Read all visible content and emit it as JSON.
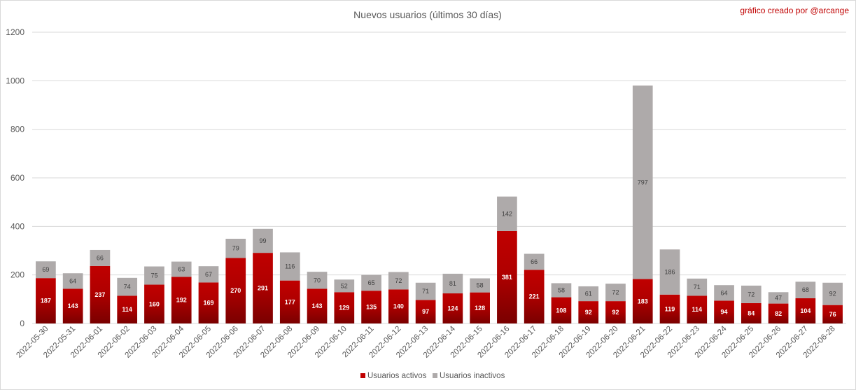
{
  "chart_data": {
    "type": "bar",
    "stacked": true,
    "title": "Nuevos usuarios (últimos 30 días)",
    "credit": "gráfico creado por @arcange",
    "xlabel": "",
    "ylabel": "",
    "ylim": [
      0,
      1200
    ],
    "y_ticks": [
      "0",
      "200",
      "400",
      "600",
      "800",
      "1000",
      "1200"
    ],
    "grid": true,
    "legend_position": "bottom",
    "categories": [
      "2022-05-30",
      "2022-05-31",
      "2022-06-01",
      "2022-06-02",
      "2022-06-03",
      "2022-06-04",
      "2022-06-05",
      "2022-06-06",
      "2022-06-07",
      "2022-06-08",
      "2022-06-09",
      "2022-06-10",
      "2022-06-11",
      "2022-06-12",
      "2022-06-13",
      "2022-06-14",
      "2022-06-15",
      "2022-06-16",
      "2022-06-17",
      "2022-06-18",
      "2022-06-19",
      "2022-06-20",
      "2022-06-21",
      "2022-06-22",
      "2022-06-23",
      "2022-06-24",
      "2022-06-25",
      "2022-06-26",
      "2022-06-27",
      "2022-06-28"
    ],
    "series": [
      {
        "name": "Usuarios activos",
        "color": "#c00000",
        "values": [
          187,
          143,
          237,
          114,
          160,
          192,
          169,
          270,
          291,
          177,
          143,
          129,
          135,
          140,
          97,
          124,
          128,
          381,
          221,
          108,
          92,
          92,
          183,
          119,
          114,
          94,
          84,
          82,
          104,
          76
        ]
      },
      {
        "name": "Usuarios inactivos",
        "color": "#aeaaaa",
        "values": [
          69,
          64,
          66,
          74,
          75,
          63,
          67,
          79,
          99,
          116,
          70,
          52,
          65,
          72,
          71,
          81,
          58,
          142,
          66,
          58,
          61,
          72,
          797,
          186,
          71,
          64,
          72,
          47,
          68,
          92
        ]
      }
    ]
  },
  "colors": {
    "gridline": "#d9d9d9",
    "credit": "#c00000",
    "active_gradient_bottom": "#7a0000"
  }
}
